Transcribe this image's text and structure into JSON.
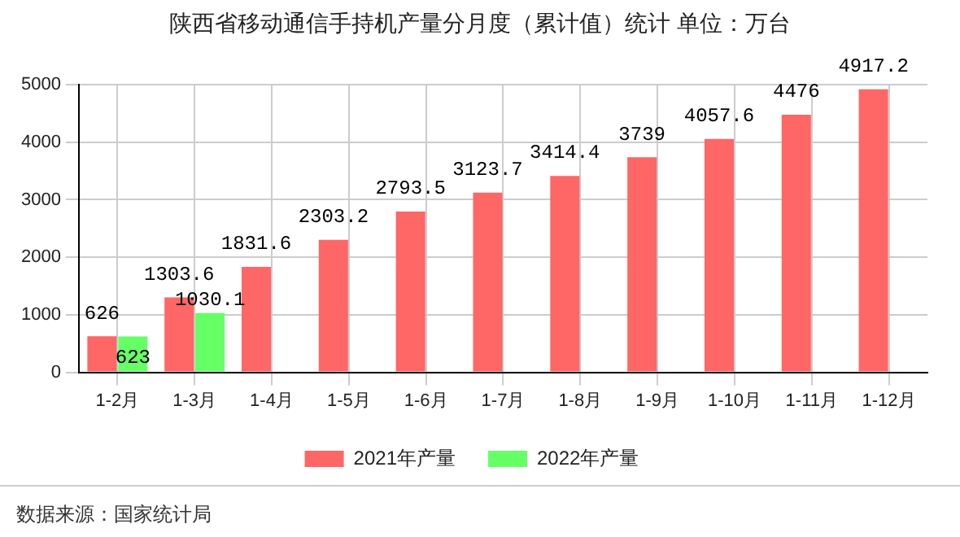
{
  "chart_data": {
    "type": "bar",
    "title": "陕西省移动通信手持机产量分月度（累计值）统计 单位：万台",
    "categories": [
      "1-2月",
      "1-3月",
      "1-4月",
      "1-5月",
      "1-6月",
      "1-7月",
      "1-8月",
      "1-9月",
      "1-10月",
      "1-11月",
      "1-12月"
    ],
    "series": [
      {
        "name": "2021年产量",
        "color": "#ff6666",
        "values": [
          626,
          1303.6,
          1831.6,
          2303.2,
          2793.5,
          3123.7,
          3414.4,
          3739,
          4057.6,
          4476,
          4917.2
        ]
      },
      {
        "name": "2022年产量",
        "color": "#66ff66",
        "values": [
          623,
          1030.1,
          null,
          null,
          null,
          null,
          null,
          null,
          null,
          null,
          null
        ]
      }
    ],
    "ylim": [
      0,
      5000
    ],
    "yticks": [
      0,
      1000,
      2000,
      3000,
      4000,
      5000
    ],
    "grid": true,
    "legend": "bottom",
    "data_labels": true,
    "annotations": [
      "数据来源：国家统计局"
    ]
  }
}
